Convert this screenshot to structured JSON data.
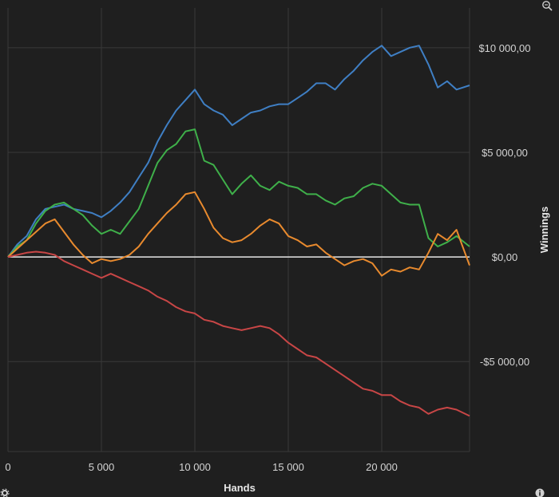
{
  "chart_data": {
    "type": "line",
    "xlabel": "Hands",
    "ylabel": "Winnings",
    "xlim": [
      0,
      24700
    ],
    "ylim": [
      -9300,
      11900
    ],
    "x_ticks": [
      0,
      5000,
      10000,
      15000,
      20000
    ],
    "x_tick_labels": [
      "0",
      "5 000",
      "10 000",
      "15 000",
      "20 000"
    ],
    "y_ticks": [
      -5000,
      0,
      5000,
      10000
    ],
    "y_tick_labels": [
      "-$5 000,00",
      "$0,00",
      "$5 000,00",
      "$10 000,00"
    ],
    "grid": true,
    "zero_line": true,
    "legend": "none",
    "series": [
      {
        "color": "#3f7fc4",
        "x": [
          0,
          500,
          1000,
          1500,
          2000,
          2500,
          3000,
          3500,
          4000,
          4500,
          5000,
          5500,
          6000,
          6500,
          7000,
          7500,
          8000,
          8500,
          9000,
          9500,
          10000,
          10500,
          11000,
          11500,
          12000,
          12500,
          13000,
          13500,
          14000,
          14500,
          15000,
          15500,
          16000,
          16500,
          17000,
          17500,
          18000,
          18500,
          19000,
          19500,
          20000,
          20500,
          21000,
          21500,
          22000,
          22500,
          23000,
          23500,
          24000,
          24700
        ],
        "y": [
          0,
          600,
          1000,
          1800,
          2300,
          2400,
          2500,
          2300,
          2200,
          2100,
          1900,
          2200,
          2600,
          3100,
          3800,
          4500,
          5500,
          6300,
          7000,
          7500,
          8000,
          7300,
          7000,
          6800,
          6300,
          6600,
          6900,
          7000,
          7200,
          7300,
          7300,
          7600,
          7900,
          8300,
          8300,
          8000,
          8500,
          8900,
          9400,
          9800,
          10100,
          9600,
          9800,
          10000,
          10100,
          9200,
          8100,
          8400,
          8000,
          8200
        ]
      },
      {
        "color": "#3fb04a",
        "x": [
          0,
          500,
          1000,
          1500,
          2000,
          2500,
          3000,
          3500,
          4000,
          4500,
          5000,
          5500,
          6000,
          6500,
          7000,
          7500,
          8000,
          8500,
          9000,
          9500,
          10000,
          10500,
          11000,
          11500,
          12000,
          12500,
          13000,
          13500,
          14000,
          14500,
          15000,
          15500,
          16000,
          16500,
          17000,
          17500,
          18000,
          18500,
          19000,
          19500,
          20000,
          20500,
          21000,
          21500,
          22000,
          22500,
          23000,
          23500,
          24000,
          24700
        ],
        "y": [
          0,
          500,
          800,
          1600,
          2200,
          2500,
          2600,
          2300,
          2000,
          1500,
          1100,
          1300,
          1100,
          1700,
          2300,
          3400,
          4500,
          5100,
          5400,
          6000,
          6100,
          4600,
          4400,
          3700,
          3000,
          3500,
          3900,
          3400,
          3200,
          3600,
          3400,
          3300,
          3000,
          3000,
          2700,
          2500,
          2800,
          2900,
          3300,
          3500,
          3400,
          3000,
          2600,
          2500,
          2500,
          900,
          500,
          700,
          1000,
          500
        ]
      },
      {
        "color": "#e88a2e",
        "x": [
          0,
          500,
          1000,
          1500,
          2000,
          2500,
          3000,
          3500,
          4000,
          4500,
          5000,
          5500,
          6000,
          6500,
          7000,
          7500,
          8000,
          8500,
          9000,
          9500,
          10000,
          10500,
          11000,
          11500,
          12000,
          12500,
          13000,
          13500,
          14000,
          14500,
          15000,
          15500,
          16000,
          16500,
          17000,
          17500,
          18000,
          18500,
          19000,
          19500,
          20000,
          20500,
          21000,
          21500,
          22000,
          22500,
          23000,
          23500,
          24000,
          24700
        ],
        "y": [
          0,
          400,
          800,
          1200,
          1600,
          1800,
          1200,
          600,
          100,
          -300,
          -100,
          -200,
          -100,
          100,
          500,
          1100,
          1600,
          2100,
          2500,
          3000,
          3100,
          2300,
          1400,
          900,
          700,
          800,
          1100,
          1500,
          1800,
          1600,
          1000,
          800,
          500,
          600,
          200,
          -100,
          -400,
          -200,
          -100,
          -300,
          -900,
          -600,
          -700,
          -500,
          -600,
          200,
          1100,
          800,
          1300,
          -400
        ]
      },
      {
        "color": "#c84646",
        "x": [
          0,
          500,
          1000,
          1500,
          2000,
          2500,
          3000,
          3500,
          4000,
          4500,
          5000,
          5500,
          6000,
          6500,
          7000,
          7500,
          8000,
          8500,
          9000,
          9500,
          10000,
          10500,
          11000,
          11500,
          12000,
          12500,
          13000,
          13500,
          14000,
          14500,
          15000,
          15500,
          16000,
          16500,
          17000,
          17500,
          18000,
          18500,
          19000,
          19500,
          20000,
          20500,
          21000,
          21500,
          22000,
          22500,
          23000,
          23500,
          24000,
          24700
        ],
        "y": [
          0,
          100,
          200,
          250,
          200,
          100,
          -200,
          -400,
          -600,
          -800,
          -1000,
          -800,
          -1000,
          -1200,
          -1400,
          -1600,
          -1900,
          -2100,
          -2400,
          -2600,
          -2700,
          -3000,
          -3100,
          -3300,
          -3400,
          -3500,
          -3400,
          -3300,
          -3400,
          -3700,
          -4100,
          -4400,
          -4700,
          -4800,
          -5100,
          -5400,
          -5700,
          -6000,
          -6300,
          -6400,
          -6600,
          -6600,
          -6900,
          -7100,
          -7200,
          -7500,
          -7300,
          -7200,
          -7300,
          -7600
        ]
      }
    ]
  },
  "icons": {
    "top_right": "zoom-icon",
    "bottom_left": "settings-icon",
    "bottom_right": "info-icon"
  }
}
